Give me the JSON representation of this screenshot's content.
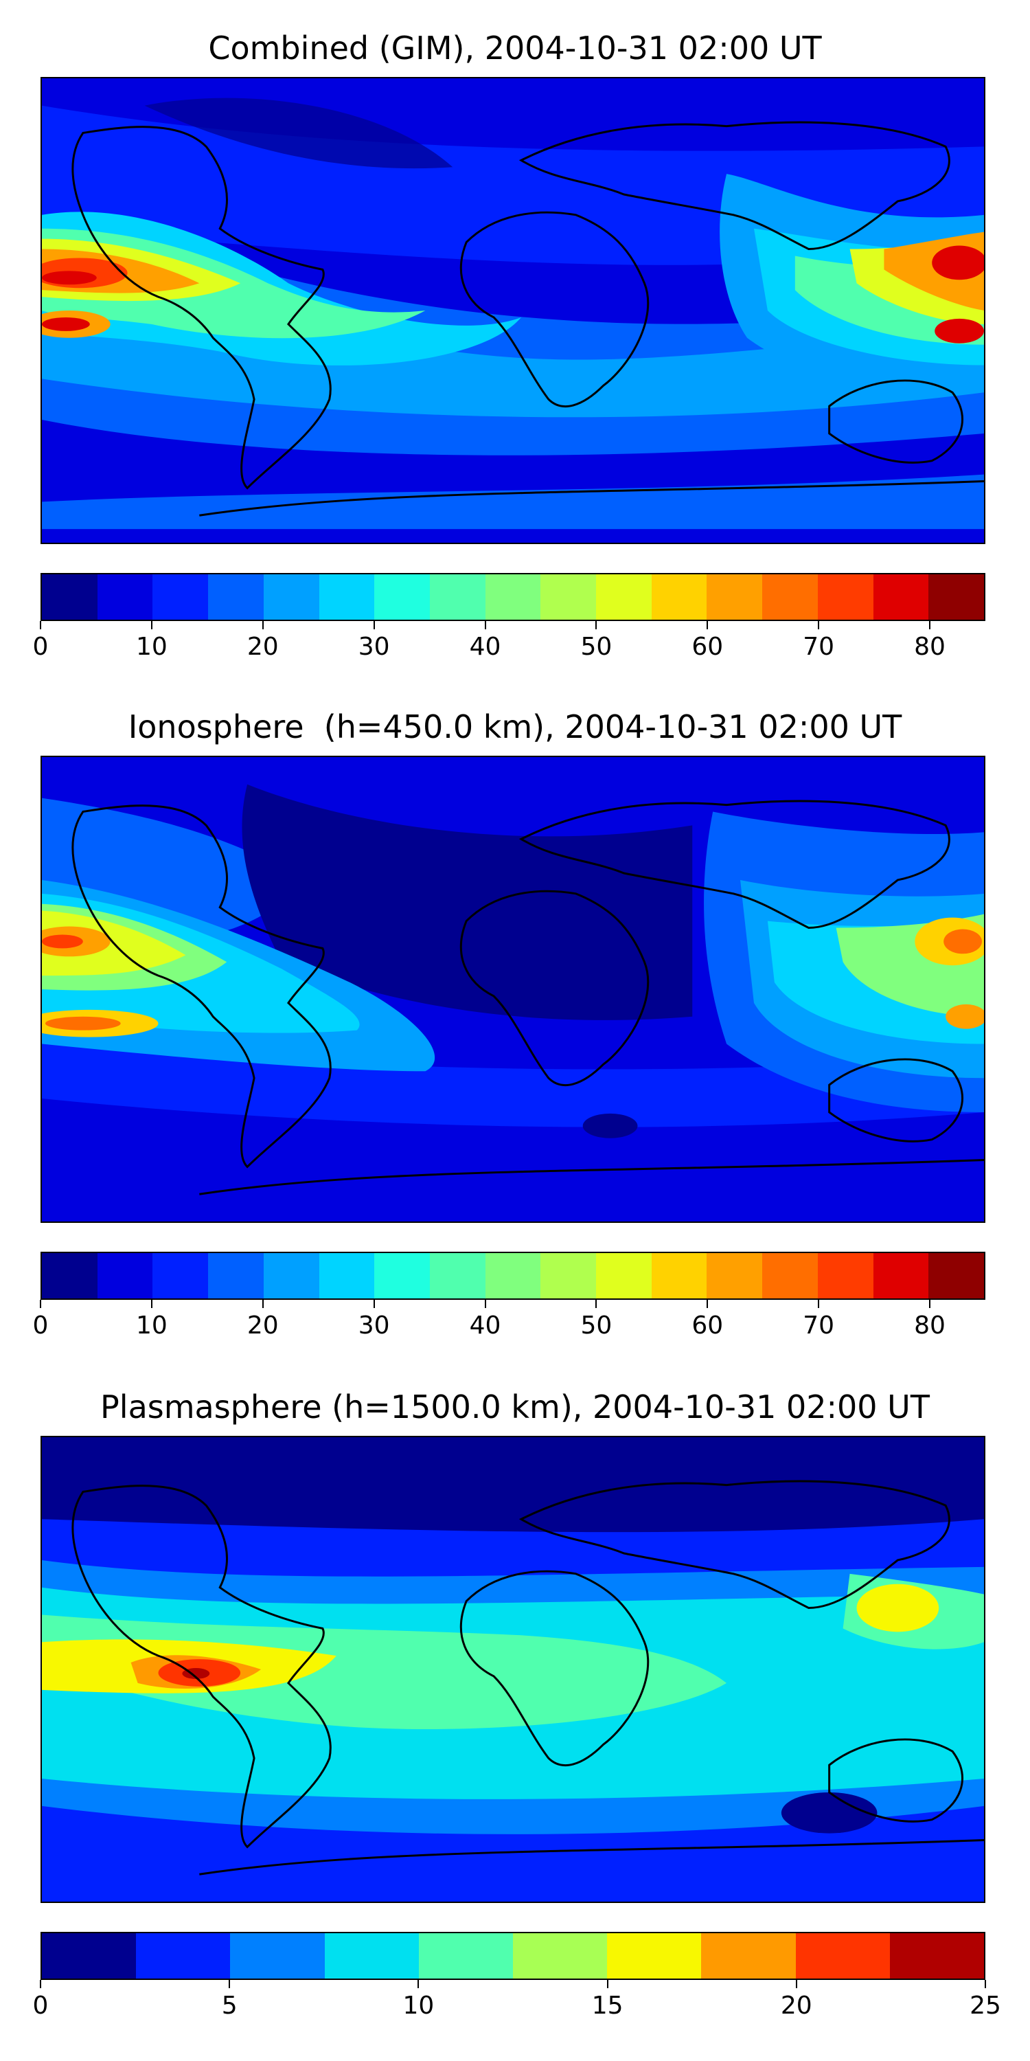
{
  "panels": [
    {
      "title": "Combined (GIM), 2004-10-31 02:00 UT",
      "colorbar": {
        "min": 0,
        "max": 85,
        "step": 5,
        "tick_labels": [
          "0",
          "10",
          "20",
          "30",
          "40",
          "50",
          "60",
          "70",
          "80"
        ],
        "tick_values": [
          0,
          10,
          20,
          30,
          40,
          50,
          60,
          70,
          80
        ]
      },
      "chart_data": {
        "type": "heatmap",
        "title": "Combined (GIM), 2004-10-31 02:00 UT",
        "value_range": [
          0,
          85
        ],
        "features": [
          {
            "lon": -160,
            "lat": 8,
            "value": 82
          },
          {
            "lon": -165,
            "lat": -12,
            "value": 80
          },
          {
            "lon": -140,
            "lat": -2,
            "value": 68
          },
          {
            "lon": -90,
            "lat": -10,
            "value": 48
          },
          {
            "lon": -50,
            "lat": -10,
            "value": 35
          },
          {
            "lon": 155,
            "lat": 8,
            "value": 75
          },
          {
            "lon": 175,
            "lat": -12,
            "value": 72
          },
          {
            "lon": 120,
            "lat": -5,
            "value": 45
          },
          {
            "lon": 10,
            "lat": 30,
            "value": 8
          },
          {
            "lon": -60,
            "lat": 60,
            "value": 6
          }
        ]
      }
    },
    {
      "title": "Ionosphere  (h=450.0 km), 2004-10-31 02:00 UT",
      "colorbar": {
        "min": 0,
        "max": 85,
        "step": 5,
        "tick_labels": [
          "0",
          "10",
          "20",
          "30",
          "40",
          "50",
          "60",
          "70",
          "80"
        ],
        "tick_values": [
          0,
          10,
          20,
          30,
          40,
          50,
          60,
          70,
          80
        ]
      },
      "chart_data": {
        "type": "heatmap",
        "title": "Ionosphere  (h=450.0 km), 2004-10-31 02:00 UT",
        "value_range": [
          0,
          85
        ],
        "features": [
          {
            "lon": -170,
            "lat": 15,
            "value": 65
          },
          {
            "lon": -165,
            "lat": -12,
            "value": 62
          },
          {
            "lon": -120,
            "lat": -5,
            "value": 45
          },
          {
            "lon": -70,
            "lat": -5,
            "value": 30
          },
          {
            "lon": 170,
            "lat": 12,
            "value": 62
          },
          {
            "lon": 165,
            "lat": -10,
            "value": 58
          },
          {
            "lon": 125,
            "lat": -5,
            "value": 40
          },
          {
            "lon": 20,
            "lat": 20,
            "value": 3
          },
          {
            "lon": -40,
            "lat": 50,
            "value": 5
          }
        ]
      }
    },
    {
      "title": "Plasmasphere (h=1500.0 km), 2004-10-31 02:00 UT",
      "colorbar": {
        "min": 0,
        "max": 25,
        "step": 2.5,
        "tick_labels": [
          "0",
          "5",
          "10",
          "15",
          "20",
          "25"
        ],
        "tick_values": [
          0,
          5,
          10,
          15,
          20,
          25
        ]
      },
      "chart_data": {
        "type": "heatmap",
        "title": "Plasmasphere (h=1500.0 km), 2004-10-31 02:00 UT",
        "value_range": [
          0,
          25
        ],
        "features": [
          {
            "lon": -120,
            "lat": -5,
            "value": 23
          },
          {
            "lon": -100,
            "lat": -5,
            "value": 18
          },
          {
            "lon": -60,
            "lat": -5,
            "value": 15
          },
          {
            "lon": 10,
            "lat": 0,
            "value": 12
          },
          {
            "lon": 125,
            "lat": 10,
            "value": 16
          },
          {
            "lon": 100,
            "lat": -30,
            "value": 3
          },
          {
            "lon": 0,
            "lat": 70,
            "value": 1
          }
        ]
      }
    }
  ],
  "colors": {
    "jet_17": [
      "#00008f",
      "#0000df",
      "#0020ff",
      "#0060ff",
      "#00a0ff",
      "#00d4ff",
      "#1fffe0",
      "#50ffae",
      "#80ff7e",
      "#b0ff4e",
      "#e0ff1e",
      "#ffd200",
      "#ffa000",
      "#ff6e00",
      "#ff3c00",
      "#df0000",
      "#8f0000"
    ],
    "jet_10": [
      "#00008f",
      "#0020ff",
      "#0080ff",
      "#00e0f0",
      "#50ffae",
      "#a8ff54",
      "#f8f800",
      "#ff9a00",
      "#ff3400",
      "#b00000"
    ]
  }
}
